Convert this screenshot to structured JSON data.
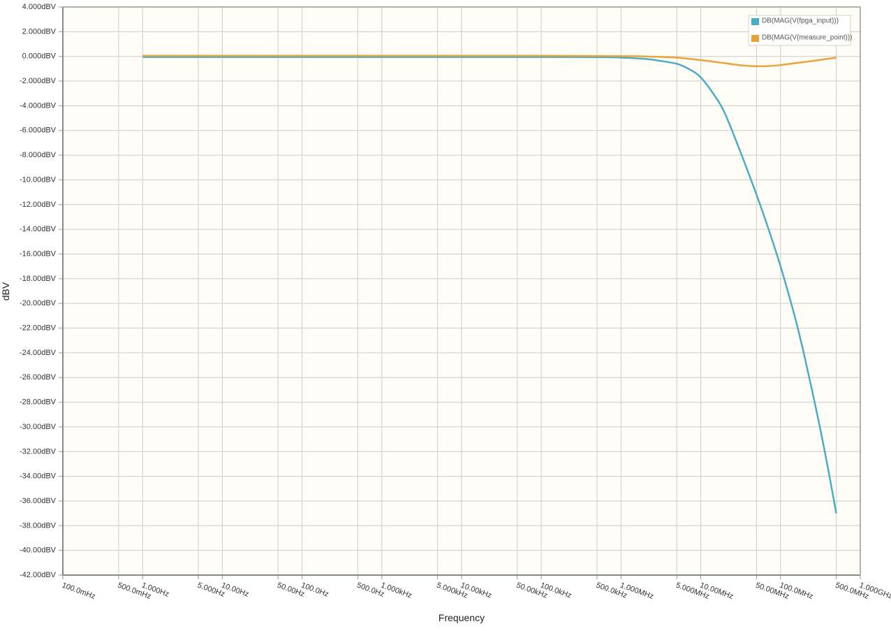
{
  "chart_data": {
    "type": "line",
    "title": "",
    "xlabel": "Frequency",
    "ylabel": "dBV",
    "x_scale": "log",
    "xlim": [
      0.1,
      1000000000
    ],
    "ylim": [
      -42,
      4
    ],
    "grid": true,
    "legend_position": "top-right",
    "y_ticks": [
      {
        "value": 4,
        "label": "4.000dBV"
      },
      {
        "value": 2,
        "label": "2.000dBV"
      },
      {
        "value": 0,
        "label": "0.000dBV"
      },
      {
        "value": -2,
        "label": "-2.000dBV"
      },
      {
        "value": -4,
        "label": "-4.000dBV"
      },
      {
        "value": -6,
        "label": "-6.000dBV"
      },
      {
        "value": -8,
        "label": "-8.000dBV"
      },
      {
        "value": -10,
        "label": "-10.00dBV"
      },
      {
        "value": -12,
        "label": "-12.00dBV"
      },
      {
        "value": -14,
        "label": "-14.00dBV"
      },
      {
        "value": -16,
        "label": "-16.00dBV"
      },
      {
        "value": -18,
        "label": "-18.00dBV"
      },
      {
        "value": -20,
        "label": "-20.00dBV"
      },
      {
        "value": -22,
        "label": "-22.00dBV"
      },
      {
        "value": -24,
        "label": "-24.00dBV"
      },
      {
        "value": -26,
        "label": "-26.00dBV"
      },
      {
        "value": -28,
        "label": "-28.00dBV"
      },
      {
        "value": -30,
        "label": "-30.00dBV"
      },
      {
        "value": -32,
        "label": "-32.00dBV"
      },
      {
        "value": -34,
        "label": "-34.00dBV"
      },
      {
        "value": -36,
        "label": "-36.00dBV"
      },
      {
        "value": -38,
        "label": "-38.00dBV"
      },
      {
        "value": -40,
        "label": "-40.00dBV"
      },
      {
        "value": -42,
        "label": "-42.00dBV"
      }
    ],
    "x_ticks": [
      {
        "value": 0.1,
        "label": "100.0mHz"
      },
      {
        "value": 0.5,
        "label": "500.0mHz"
      },
      {
        "value": 1,
        "label": "1.000Hz"
      },
      {
        "value": 5,
        "label": "5.000Hz"
      },
      {
        "value": 10,
        "label": "10.00Hz"
      },
      {
        "value": 50,
        "label": "50.00Hz"
      },
      {
        "value": 100,
        "label": "100.0Hz"
      },
      {
        "value": 500,
        "label": "500.0Hz"
      },
      {
        "value": 1000,
        "label": "1.000kHz"
      },
      {
        "value": 5000,
        "label": "5.000kHz"
      },
      {
        "value": 10000,
        "label": "10.00kHz"
      },
      {
        "value": 50000,
        "label": "50.00kHz"
      },
      {
        "value": 100000,
        "label": "100.0kHz"
      },
      {
        "value": 500000,
        "label": "500.0kHz"
      },
      {
        "value": 1000000,
        "label": "1.000MHz"
      },
      {
        "value": 5000000,
        "label": "5.000MHz"
      },
      {
        "value": 10000000,
        "label": "10.00MHz"
      },
      {
        "value": 50000000,
        "label": "50.00MHz"
      },
      {
        "value": 100000000,
        "label": "100.0MHz"
      },
      {
        "value": 500000000,
        "label": "500.0MHz"
      },
      {
        "value": 1000000000,
        "label": "1.000GHz"
      }
    ],
    "series": [
      {
        "name": "DB(MAG(V(fpga_input)))",
        "color": "#4bacc6",
        "x": [
          1,
          10,
          100,
          1000,
          10000,
          100000,
          500000,
          1000000,
          2000000,
          3000000,
          5000000,
          7000000,
          10000000,
          15000000,
          20000000,
          30000000,
          50000000,
          70000000,
          100000000,
          150000000,
          200000000,
          300000000,
          400000000,
          500000000
        ],
        "y": [
          -0.05,
          -0.05,
          -0.05,
          -0.05,
          -0.05,
          -0.05,
          -0.06,
          -0.1,
          -0.2,
          -0.35,
          -0.6,
          -1.0,
          -1.7,
          -3.2,
          -4.6,
          -7.4,
          -11.2,
          -13.9,
          -17.0,
          -21.0,
          -24.3,
          -29.5,
          -33.6,
          -37.0
        ]
      },
      {
        "name": "DB(MAG(V(measure_point)))",
        "color": "#e8a33c",
        "x": [
          1,
          10,
          100,
          1000,
          10000,
          100000,
          1000000,
          2000000,
          5000000,
          10000000,
          20000000,
          30000000,
          50000000,
          70000000,
          100000000,
          200000000,
          300000000,
          500000000
        ],
        "y": [
          0.05,
          0.05,
          0.05,
          0.05,
          0.05,
          0.05,
          0.02,
          0.0,
          -0.1,
          -0.3,
          -0.55,
          -0.7,
          -0.8,
          -0.78,
          -0.7,
          -0.45,
          -0.3,
          -0.1
        ]
      }
    ]
  }
}
